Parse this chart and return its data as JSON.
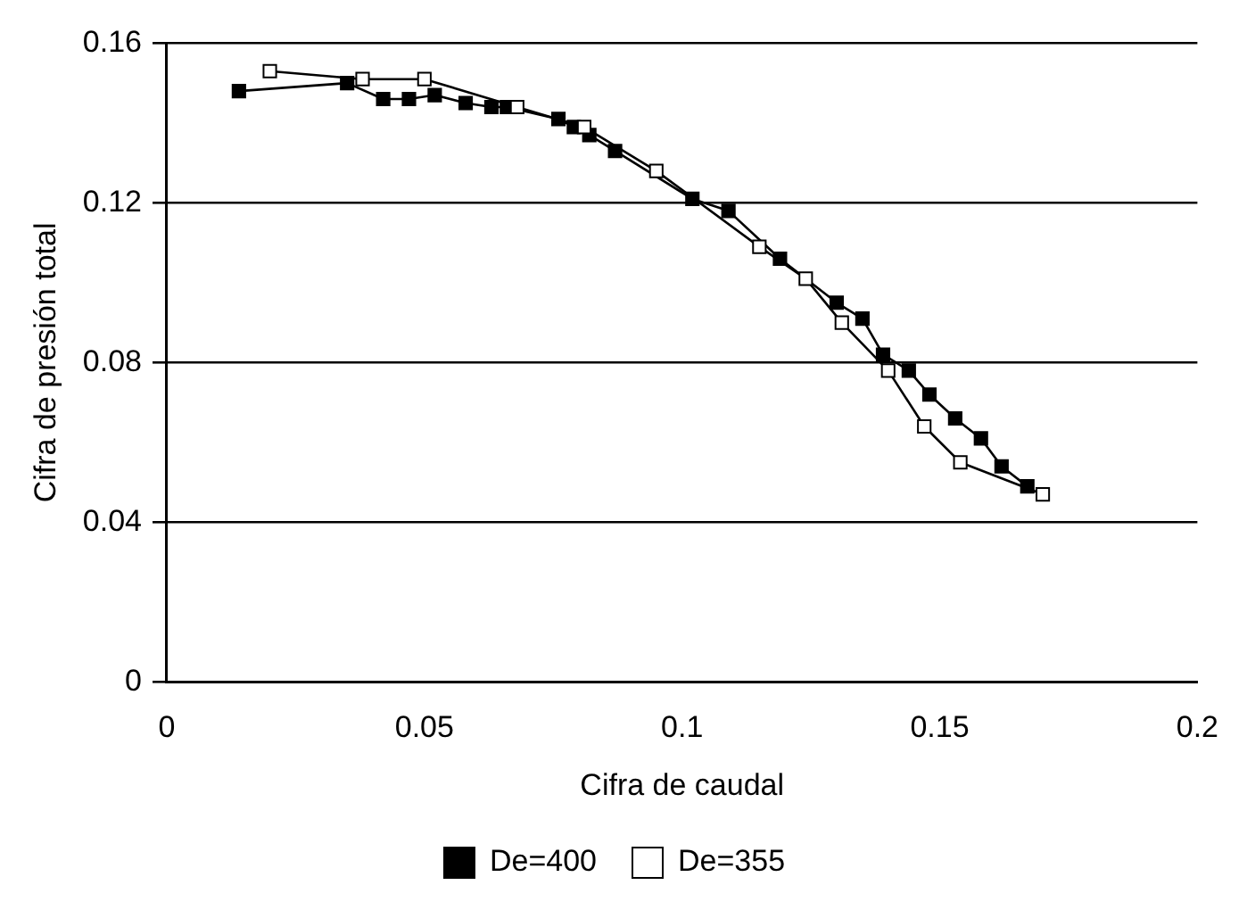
{
  "chart_data": {
    "type": "line",
    "xlabel": "Cifra de caudal",
    "ylabel": "Cifra de presión total",
    "xlim": [
      0,
      0.2
    ],
    "xticks": [
      0,
      0.05,
      0.1,
      0.15,
      0.2
    ],
    "ylim": [
      0,
      0.16
    ],
    "yticks": [
      0,
      0.04,
      0.08,
      0.12,
      0.16
    ],
    "grid": "y",
    "legend": "bottom",
    "marker": "square",
    "line_style": "solid",
    "series": [
      {
        "name": "De=400",
        "color": "#000000",
        "x": [
          0.014,
          0.035,
          0.042,
          0.047,
          0.052,
          0.058,
          0.063,
          0.066,
          0.076,
          0.079,
          0.082,
          0.087,
          0.102,
          0.109,
          0.119,
          0.13,
          0.135,
          0.139,
          0.144,
          0.148,
          0.153,
          0.158,
          0.162,
          0.167
        ],
        "values": [
          0.148,
          0.15,
          0.146,
          0.146,
          0.147,
          0.145,
          0.144,
          0.144,
          0.141,
          0.139,
          0.137,
          0.133,
          0.121,
          0.118,
          0.106,
          0.095,
          0.091,
          0.082,
          0.078,
          0.072,
          0.066,
          0.061,
          0.054,
          0.049
        ]
      },
      {
        "name": "De=355",
        "color": "#ffffff",
        "x": [
          0.02,
          0.038,
          0.05,
          0.068,
          0.081,
          0.095,
          0.115,
          0.124,
          0.131,
          0.14,
          0.147,
          0.154,
          0.17
        ],
        "values": [
          0.153,
          0.151,
          0.151,
          0.144,
          0.139,
          0.128,
          0.109,
          0.101,
          0.09,
          0.078,
          0.064,
          0.055,
          0.047
        ]
      }
    ]
  }
}
